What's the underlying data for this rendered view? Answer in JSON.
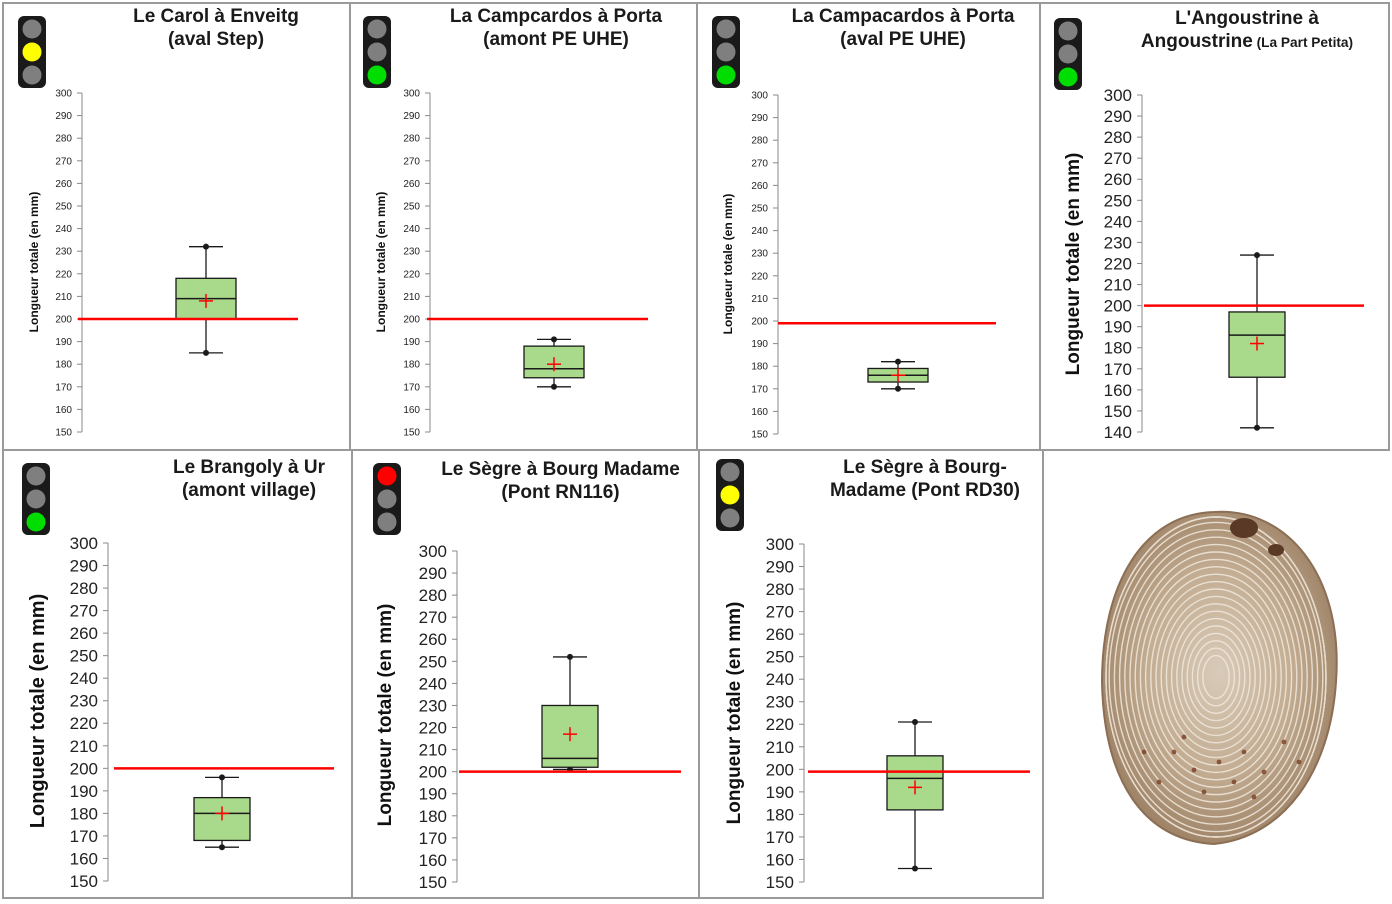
{
  "colors": {
    "box_fill": "#a9d98b",
    "box_stroke": "#1a1a1a",
    "threshold_line": "#ff0000",
    "mean_marker": "#ff0000",
    "light_off": "#7f7f7f",
    "light_yellow": "#ffff00",
    "light_green": "#00dd00",
    "light_red": "#ff0000",
    "traffic_housing": "#1a1a1a"
  },
  "chart_data": [
    {
      "type": "box",
      "title_line1": "Le Carol à Enveitg",
      "title_line2": "(aval Step)",
      "title_small": "",
      "ylabel": "Longueur totale (en mm)",
      "ylim": [
        150,
        300
      ],
      "tick_step": 10,
      "threshold": 200,
      "traffic_light": "yellow",
      "box": {
        "min": 185,
        "q1": 200,
        "median": 209,
        "q3": 218,
        "max": 232,
        "mean": 208
      }
    },
    {
      "type": "box",
      "title_line1": "La Campcardos à Porta",
      "title_line2": "(amont PE UHE)",
      "title_small": "",
      "ylabel": "Longueur totale (en mm)",
      "ylim": [
        150,
        300
      ],
      "tick_step": 10,
      "threshold": 200,
      "traffic_light": "green",
      "box": {
        "min": 170,
        "q1": 174,
        "median": 178,
        "q3": 188,
        "max": 191,
        "mean": 180
      }
    },
    {
      "type": "box",
      "title_line1": "La Campacardos à Porta",
      "title_line2": "(aval PE UHE)",
      "title_small": "",
      "ylabel": "Longueur totale (en mm)",
      "ylim": [
        150,
        300
      ],
      "tick_step": 10,
      "threshold": 199,
      "traffic_light": "green",
      "box": {
        "min": 170,
        "q1": 173,
        "median": 176,
        "q3": 179,
        "max": 182,
        "mean": 176
      }
    },
    {
      "type": "box",
      "title_line1": "L'Angoustrine à",
      "title_line2": "Angoustrine",
      "title_small": "(La Part Petita)",
      "ylabel": "Longueur totale (en mm)",
      "ylim": [
        140,
        300
      ],
      "tick_step": 10,
      "threshold": 200,
      "traffic_light": "green",
      "box": {
        "min": 142,
        "q1": 166,
        "median": 186,
        "q3": 197,
        "max": 224,
        "mean": 182
      }
    },
    {
      "type": "box",
      "title_line1": "Le Brangoly à Ur",
      "title_line2": "(amont village)",
      "title_small": "",
      "ylabel": "Longueur totale (en mm)",
      "ylim": [
        150,
        300
      ],
      "tick_step": 10,
      "threshold": 200,
      "traffic_light": "green",
      "box": {
        "min": 165,
        "q1": 168,
        "median": 180,
        "q3": 187,
        "max": 196,
        "mean": 180
      }
    },
    {
      "type": "box",
      "title_line1": "Le Sègre à Bourg Madame",
      "title_line2": "(Pont RN116)",
      "title_small": "",
      "ylabel": "Longueur totale (en mm)",
      "ylim": [
        150,
        300
      ],
      "tick_step": 10,
      "threshold": 200,
      "traffic_light": "red",
      "box": {
        "min": 201,
        "q1": 202,
        "median": 206,
        "q3": 230,
        "max": 252,
        "mean": 217
      }
    },
    {
      "type": "box",
      "title_line1": "Le Sègre à Bourg-",
      "title_line2": "Madame (Pont RD30)",
      "title_small": "",
      "ylabel": "Longueur totale (en mm)",
      "ylim": [
        150,
        300
      ],
      "tick_step": 10,
      "threshold": 199,
      "traffic_light": "yellow",
      "box": {
        "min": 156,
        "q1": 182,
        "median": 196,
        "q3": 206,
        "max": 221,
        "mean": 192
      }
    }
  ],
  "photo": {
    "subject": "fish-scale-image"
  }
}
